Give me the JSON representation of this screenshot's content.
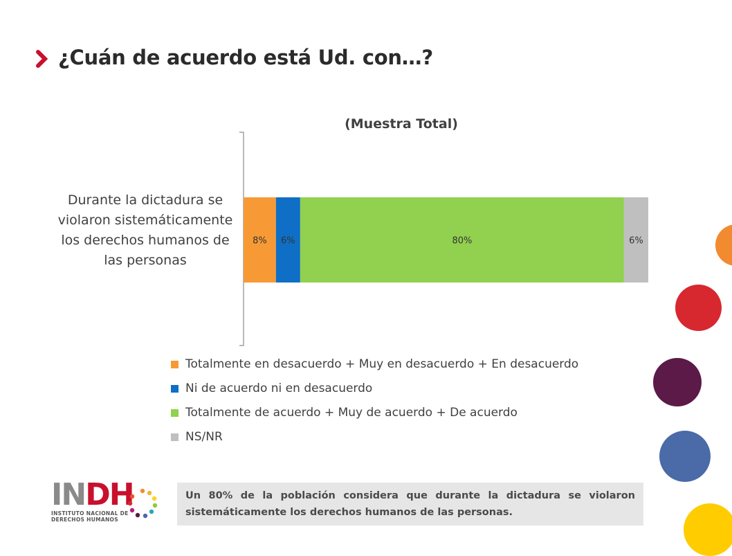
{
  "page": {
    "title": "¿Cuán de acuerdo está Ud. con…?",
    "note": "Un 80% de la población considera que durante la dictadura se violaron sistemáticamente los derechos humanos de las personas.",
    "logo": {
      "main_in": "IN",
      "main_dh": "DH",
      "subtitle_line1": "INSTITUTO NACIONAL DE",
      "subtitle_line2": "DERECHOS HUMANOS"
    },
    "colors": {
      "title_chevron": "#c8102e",
      "note_background": "#e6e6e6",
      "decor_circles": [
        "#f28a30",
        "#d7282f",
        "#5b1a48",
        "#4a6aa8",
        "#ffcc00"
      ]
    }
  },
  "chart_data": {
    "type": "bar",
    "orientation": "horizontal",
    "stacked": true,
    "title": "(Muestra Total)",
    "categories": [
      "Durante la dictadura se violaron sistemáticamente los derechos humanos de las personas"
    ],
    "series": [
      {
        "name": "Totalmente en desacuerdo + Muy en desacuerdo + En desacuerdo",
        "values": [
          8
        ],
        "label": "8%",
        "color": "#f79a36"
      },
      {
        "name": "Ni de acuerdo ni en desacuerdo",
        "values": [
          6
        ],
        "label": "6%",
        "color": "#0f6fc6"
      },
      {
        "name": "Totalmente de acuerdo + Muy de acuerdo + De acuerdo",
        "values": [
          80
        ],
        "label": "80%",
        "color": "#92d050"
      },
      {
        "name": "NS/NR",
        "values": [
          6
        ],
        "label": "6%",
        "color": "#bfbfbf"
      }
    ],
    "xlim": [
      0,
      100
    ],
    "unit": "%",
    "grid": false,
    "legend_position": "bottom"
  }
}
